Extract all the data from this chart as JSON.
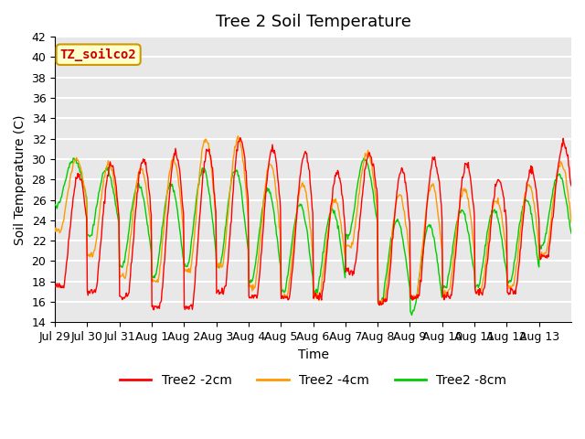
{
  "title": "Tree 2 Soil Temperature",
  "xlabel": "Time",
  "ylabel": "Soil Temperature (C)",
  "ylim": [
    14,
    42
  ],
  "yticks": [
    14,
    16,
    18,
    20,
    22,
    24,
    26,
    28,
    30,
    32,
    34,
    36,
    38,
    40,
    42
  ],
  "x_labels": [
    "Jul 29",
    "Jul 30",
    "Jul 31",
    "Aug 1",
    "Aug 2",
    "Aug 3",
    "Aug 4",
    "Aug 5",
    "Aug 6",
    "Aug 7",
    "Aug 8",
    "Aug 9",
    "Aug 10",
    "Aug 11",
    "Aug 12",
    "Aug 13"
  ],
  "annotation_text": "TZ_soilco2",
  "annotation_bg": "#ffffcc",
  "annotation_border": "#cc9900",
  "annotation_text_color": "#cc0000",
  "line_colors": [
    "#ff0000",
    "#ff9900",
    "#00cc00"
  ],
  "line_labels": [
    "Tree2 -2cm",
    "Tree2 -4cm",
    "Tree2 -8cm"
  ],
  "bg_color": "#e8e8e8",
  "grid_color": "#ffffff",
  "title_fontsize": 13,
  "label_fontsize": 10,
  "tick_fontsize": 9,
  "legend_fontsize": 10
}
